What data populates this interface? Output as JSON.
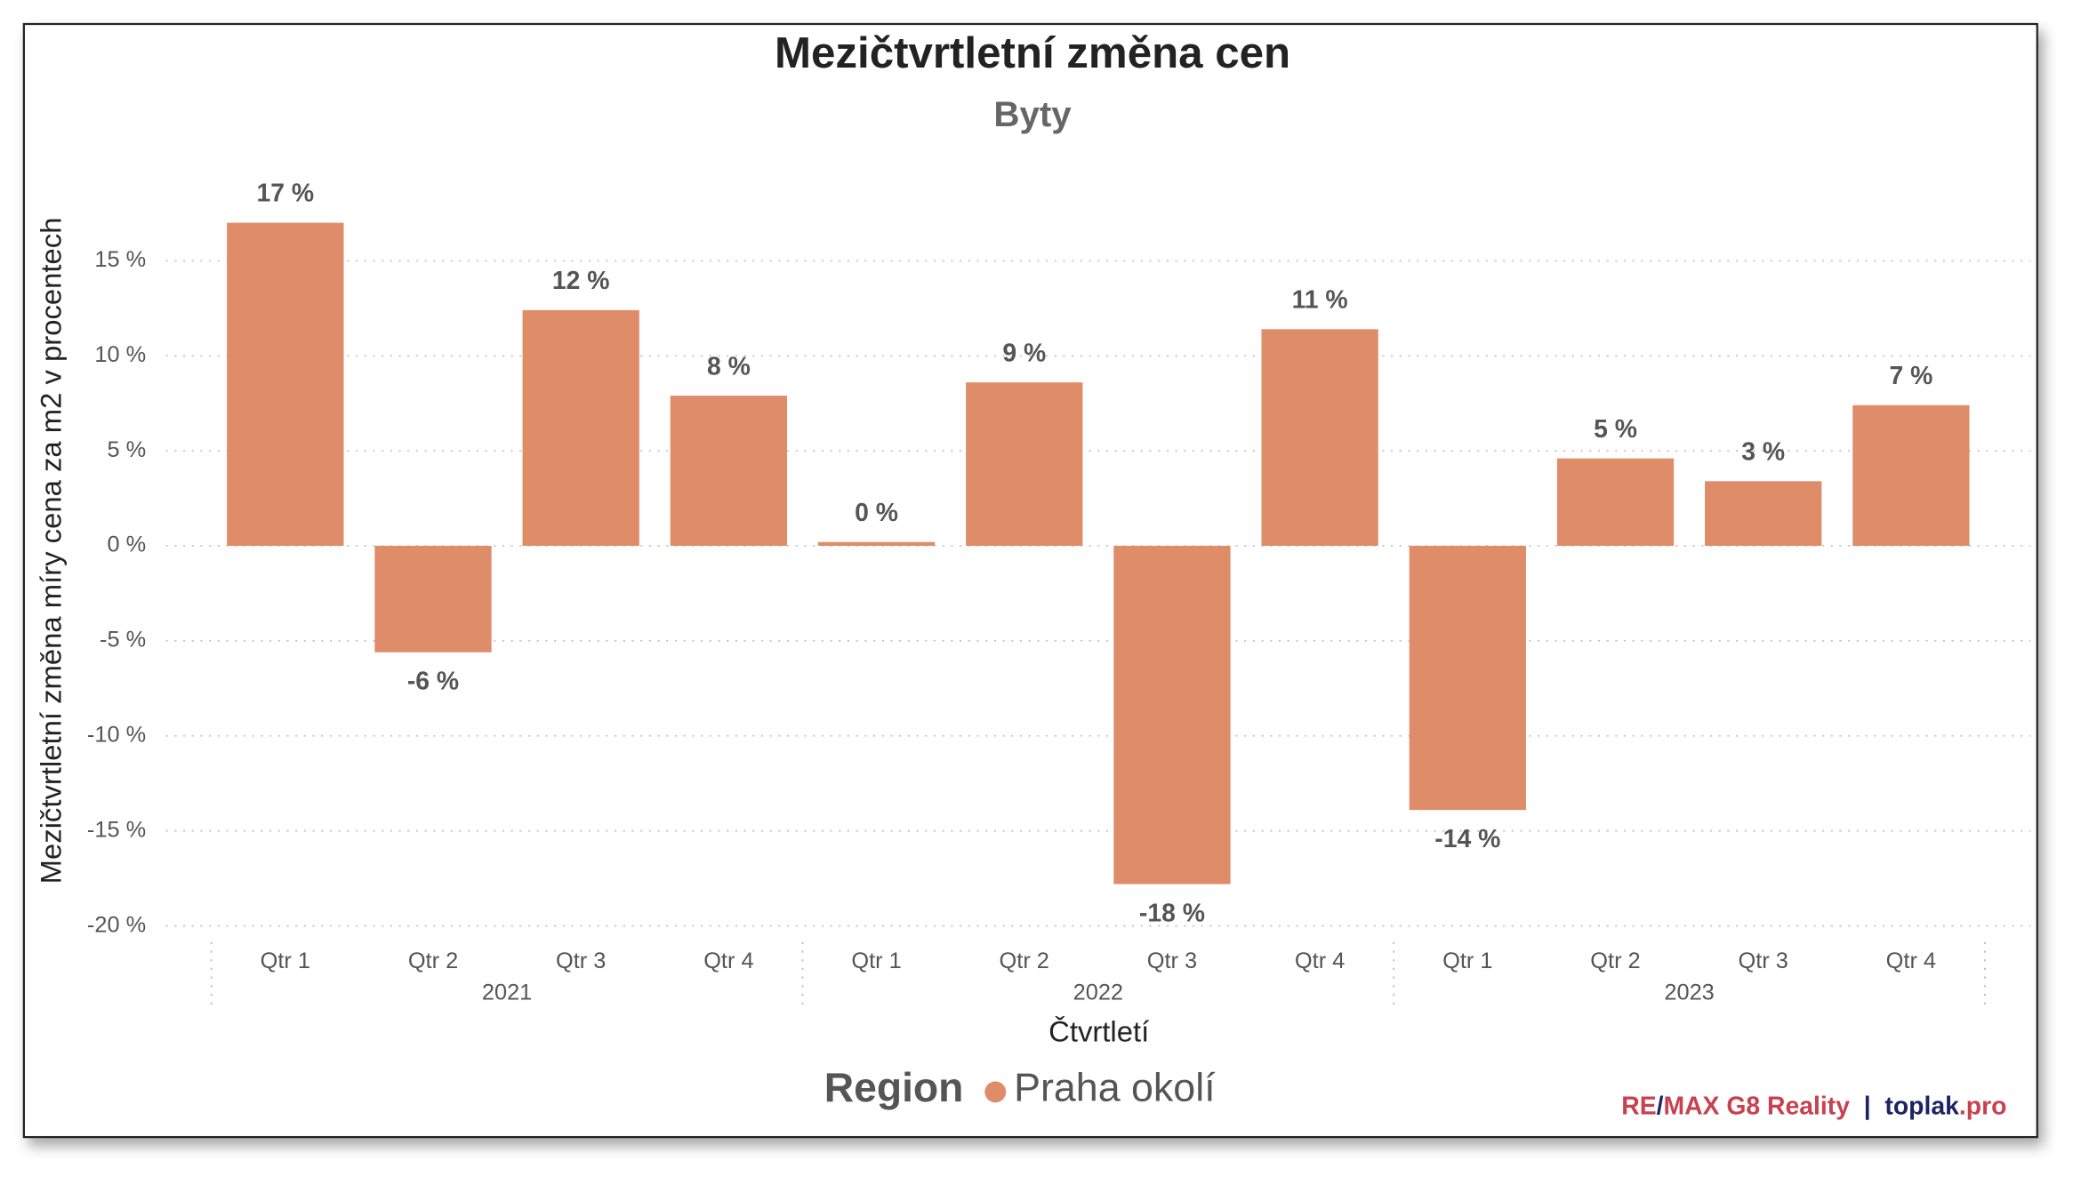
{
  "chart_data": {
    "type": "bar",
    "title": "Mezičtvrtletní změna cen",
    "subtitle": "Byty",
    "y_axis_label": "Mezičtvrtletní změna míry cena za m2 v procentech",
    "x_axis_label": "Čtvrtletí",
    "categories": [
      "Qtr 1",
      "Qtr 2",
      "Qtr 3",
      "Qtr 4",
      "Qtr 1",
      "Qtr 2",
      "Qtr 3",
      "Qtr 4",
      "Qtr 1",
      "Qtr 2",
      "Qtr 3",
      "Qtr 4"
    ],
    "category_groups": [
      "2021",
      "2022",
      "2023"
    ],
    "legend_title": "Region",
    "series": [
      {
        "name": "Praha okolí",
        "color": "#df8c69",
        "values": [
          17.0,
          -5.6,
          12.4,
          7.9,
          0.2,
          8.6,
          -17.8,
          11.4,
          -13.9,
          4.6,
          3.4,
          7.4
        ],
        "value_labels": [
          "17 %",
          "-6 %",
          "12 %",
          "8 %",
          "0 %",
          "9 %",
          "-18 %",
          "11 %",
          "-14 %",
          "5 %",
          "3 %",
          "7 %"
        ]
      }
    ],
    "ylim": [
      -20.5,
      19.5
    ],
    "yticks": [
      {
        "value": -20,
        "label": "-20 %"
      },
      {
        "value": -15,
        "label": "-15 %"
      },
      {
        "value": -10,
        "label": "-10 %"
      },
      {
        "value": -5,
        "label": "-5 %"
      },
      {
        "value": 0,
        "label": "0 %"
      },
      {
        "value": 5,
        "label": "5 %"
      },
      {
        "value": 10,
        "label": "10 %"
      },
      {
        "value": 15,
        "label": "15 %"
      }
    ],
    "grid": true,
    "legend_position": "bottom",
    "footer": [
      {
        "text": "RE",
        "color": "#c8414f"
      },
      {
        "text": "/",
        "color": "#1c2466"
      },
      {
        "text": "MAX G8 Reality",
        "color": "#c8414f"
      },
      {
        "text": "  |  ",
        "color": "#1c2466"
      },
      {
        "text": "toplak",
        "color": "#1c2466"
      },
      {
        "text": ".pro",
        "color": "#c8414f"
      }
    ]
  }
}
